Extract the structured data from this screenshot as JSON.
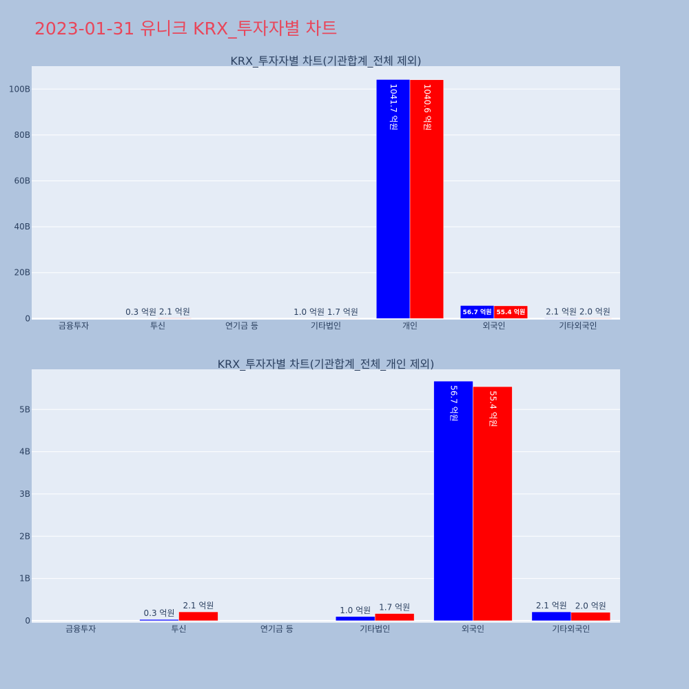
{
  "title": "2023-01-31 유니크 KRX_투자자별 차트",
  "colors": {
    "series1": "#0000ff",
    "series2": "#ff0000",
    "plot_bg": "#e5ecf6",
    "page_bg": "#b0c4de",
    "title": "#e8465a"
  },
  "chart_data": [
    {
      "type": "bar",
      "title": "KRX_투자자별 차트(기관합계_전체 제외)",
      "categories": [
        "금융투자",
        "투신",
        "연기금 등",
        "기타법인",
        "개인",
        "외국인",
        "기타외국인"
      ],
      "series": [
        {
          "values": [
            0,
            0.03,
            0,
            0.1,
            104.17,
            5.67,
            0.21
          ],
          "labels": [
            "",
            "0.3 억원",
            "",
            "1.0 억원",
            "1041.7 억원",
            "56.7 억원",
            "2.1 억원"
          ]
        },
        {
          "values": [
            0,
            0.21,
            0,
            0.17,
            104.06,
            5.54,
            0.2
          ],
          "labels": [
            "",
            "2.1 억원",
            "",
            "1.7 억원",
            "1040.6 억원",
            "55.4 억원",
            "2.0 억원"
          ]
        }
      ],
      "ylim": [
        -0.5,
        110
      ],
      "yticks": [
        0,
        20,
        40,
        60,
        80,
        100
      ],
      "ytick_labels": [
        "0",
        "20B",
        "40B",
        "60B",
        "80B",
        "100B"
      ],
      "grid": true
    },
    {
      "type": "bar",
      "title": "KRX_투자자별 차트(기관합계_전체_개인 제외)",
      "categories": [
        "금융투자",
        "투신",
        "연기금 등",
        "기타법인",
        "외국인",
        "기타외국인"
      ],
      "series": [
        {
          "values": [
            0,
            0.03,
            0,
            0.1,
            5.67,
            0.21
          ],
          "labels": [
            "",
            "0.3 억원",
            "",
            "1.0 억원",
            "56.7 억원",
            "2.1 억원"
          ]
        },
        {
          "values": [
            0,
            0.21,
            0,
            0.17,
            5.54,
            0.2
          ],
          "labels": [
            "",
            "2.1 억원",
            "",
            "1.7 억원",
            "55.4 억원",
            "2.0 억원"
          ]
        }
      ],
      "ylim": [
        -0.05,
        5.95
      ],
      "yticks": [
        0,
        1,
        2,
        3,
        4,
        5
      ],
      "ytick_labels": [
        "0",
        "1B",
        "2B",
        "3B",
        "4B",
        "5B"
      ],
      "grid": true
    }
  ]
}
